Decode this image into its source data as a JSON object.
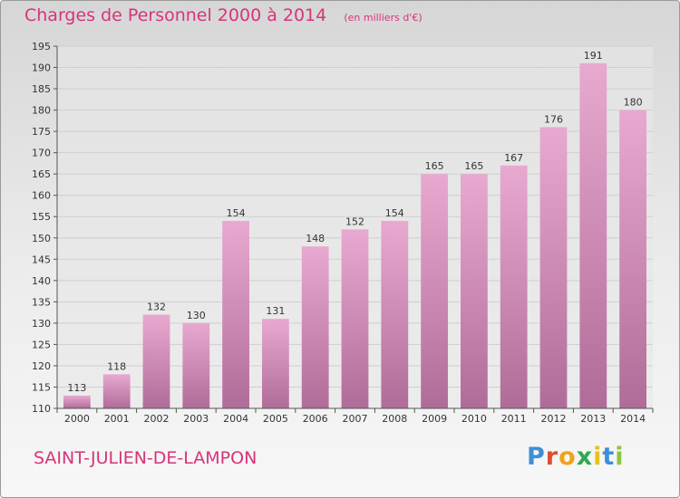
{
  "header": {
    "title": "Charges de Personnel 2000 à 2014",
    "subtitle": "(en milliers d'€)"
  },
  "footer": {
    "location": "SAINT-JULIEN-DE-LAMPON",
    "logo_letters": [
      "P",
      "r",
      "o",
      "x",
      "i",
      "t",
      "i"
    ]
  },
  "colors": {
    "title": "#d7347a",
    "bar_top": "#e8a9d0",
    "bar_bottom": "#b06c98",
    "logo": [
      "#3d8fd6",
      "#e04c2f",
      "#f0a21c",
      "#2fa84f",
      "#e8c21a",
      "#3d8fd6",
      "#8cc63f"
    ]
  },
  "chart_data": {
    "type": "bar",
    "title": "Charges de Personnel 2000 à 2014",
    "subtitle": "(en milliers d'€)",
    "categories": [
      "2000",
      "2001",
      "2002",
      "2003",
      "2004",
      "2005",
      "2006",
      "2007",
      "2008",
      "2009",
      "2010",
      "2011",
      "2012",
      "2013",
      "2014"
    ],
    "values": [
      113,
      118,
      132,
      130,
      154,
      131,
      148,
      152,
      154,
      165,
      165,
      167,
      176,
      191,
      180
    ],
    "ylim": [
      110,
      195
    ],
    "yticks": [
      110,
      115,
      120,
      125,
      130,
      135,
      140,
      145,
      150,
      155,
      160,
      165,
      170,
      175,
      180,
      185,
      190,
      195
    ],
    "grid": true
  }
}
